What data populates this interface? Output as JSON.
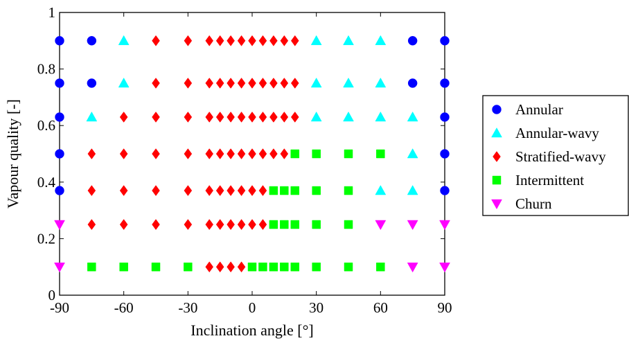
{
  "chart_data": {
    "type": "scatter",
    "title": "",
    "xlabel": "Inclination angle [°]",
    "ylabel": "Vapour quality [-]",
    "xlim": [
      -90,
      90
    ],
    "ylim": [
      0,
      1
    ],
    "xticks": [
      -90,
      -60,
      -30,
      0,
      30,
      60,
      90
    ],
    "yticks": [
      0,
      0.2,
      0.4,
      0.6,
      0.8,
      1
    ],
    "xtick_labels": [
      "-90",
      "-60",
      "-30",
      "0",
      "30",
      "60",
      "90"
    ],
    "ytick_labels": [
      "0",
      "0.2",
      "0.4",
      "0.6",
      "0.8",
      "1"
    ],
    "grid": false,
    "legend_position": "outside right",
    "series": [
      {
        "name": "Annular",
        "color": "#0000ff",
        "marker": "circle",
        "points": [
          [
            -90,
            0.9
          ],
          [
            -75,
            0.9
          ],
          [
            75,
            0.9
          ],
          [
            90,
            0.9
          ],
          [
            -90,
            0.75
          ],
          [
            -75,
            0.75
          ],
          [
            75,
            0.75
          ],
          [
            90,
            0.75
          ],
          [
            -90,
            0.63
          ],
          [
            90,
            0.63
          ],
          [
            -90,
            0.5
          ],
          [
            90,
            0.5
          ],
          [
            -90,
            0.37
          ],
          [
            90,
            0.37
          ]
        ]
      },
      {
        "name": "Annular-wavy",
        "color": "#00ffff",
        "marker": "triangle-up",
        "points": [
          [
            -60,
            0.9
          ],
          [
            30,
            0.9
          ],
          [
            45,
            0.9
          ],
          [
            60,
            0.9
          ],
          [
            -60,
            0.75
          ],
          [
            30,
            0.75
          ],
          [
            45,
            0.75
          ],
          [
            60,
            0.75
          ],
          [
            -75,
            0.63
          ],
          [
            30,
            0.63
          ],
          [
            45,
            0.63
          ],
          [
            60,
            0.63
          ],
          [
            75,
            0.63
          ],
          [
            75,
            0.5
          ],
          [
            60,
            0.37
          ],
          [
            75,
            0.37
          ]
        ]
      },
      {
        "name": "Stratified-wavy",
        "color": "#ff0000",
        "marker": "diamond",
        "points": [
          [
            -45,
            0.9
          ],
          [
            -30,
            0.9
          ],
          [
            -20,
            0.9
          ],
          [
            -15,
            0.9
          ],
          [
            -10,
            0.9
          ],
          [
            -5,
            0.9
          ],
          [
            0,
            0.9
          ],
          [
            5,
            0.9
          ],
          [
            10,
            0.9
          ],
          [
            15,
            0.9
          ],
          [
            20,
            0.9
          ],
          [
            -45,
            0.75
          ],
          [
            -30,
            0.75
          ],
          [
            -20,
            0.75
          ],
          [
            -15,
            0.75
          ],
          [
            -10,
            0.75
          ],
          [
            -5,
            0.75
          ],
          [
            0,
            0.75
          ],
          [
            5,
            0.75
          ],
          [
            10,
            0.75
          ],
          [
            15,
            0.75
          ],
          [
            20,
            0.75
          ],
          [
            -60,
            0.63
          ],
          [
            -45,
            0.63
          ],
          [
            -30,
            0.63
          ],
          [
            -20,
            0.63
          ],
          [
            -15,
            0.63
          ],
          [
            -10,
            0.63
          ],
          [
            -5,
            0.63
          ],
          [
            0,
            0.63
          ],
          [
            5,
            0.63
          ],
          [
            10,
            0.63
          ],
          [
            15,
            0.63
          ],
          [
            20,
            0.63
          ],
          [
            -75,
            0.5
          ],
          [
            -60,
            0.5
          ],
          [
            -45,
            0.5
          ],
          [
            -30,
            0.5
          ],
          [
            -20,
            0.5
          ],
          [
            -15,
            0.5
          ],
          [
            -10,
            0.5
          ],
          [
            -5,
            0.5
          ],
          [
            0,
            0.5
          ],
          [
            5,
            0.5
          ],
          [
            10,
            0.5
          ],
          [
            15,
            0.5
          ],
          [
            -75,
            0.37
          ],
          [
            -60,
            0.37
          ],
          [
            -45,
            0.37
          ],
          [
            -30,
            0.37
          ],
          [
            -20,
            0.37
          ],
          [
            -15,
            0.37
          ],
          [
            -10,
            0.37
          ],
          [
            -5,
            0.37
          ],
          [
            0,
            0.37
          ],
          [
            5,
            0.37
          ],
          [
            -75,
            0.25
          ],
          [
            -60,
            0.25
          ],
          [
            -45,
            0.25
          ],
          [
            -30,
            0.25
          ],
          [
            -20,
            0.25
          ],
          [
            -15,
            0.25
          ],
          [
            -10,
            0.25
          ],
          [
            -5,
            0.25
          ],
          [
            0,
            0.25
          ],
          [
            5,
            0.25
          ],
          [
            -20,
            0.1
          ],
          [
            -15,
            0.1
          ],
          [
            -10,
            0.1
          ],
          [
            -5,
            0.1
          ]
        ]
      },
      {
        "name": "Intermittent",
        "color": "#00ff00",
        "marker": "square",
        "points": [
          [
            20,
            0.5
          ],
          [
            30,
            0.5
          ],
          [
            45,
            0.5
          ],
          [
            60,
            0.5
          ],
          [
            10,
            0.37
          ],
          [
            15,
            0.37
          ],
          [
            20,
            0.37
          ],
          [
            30,
            0.37
          ],
          [
            45,
            0.37
          ],
          [
            10,
            0.25
          ],
          [
            15,
            0.25
          ],
          [
            20,
            0.25
          ],
          [
            30,
            0.25
          ],
          [
            45,
            0.25
          ],
          [
            -75,
            0.1
          ],
          [
            -60,
            0.1
          ],
          [
            -45,
            0.1
          ],
          [
            -30,
            0.1
          ],
          [
            0,
            0.1
          ],
          [
            5,
            0.1
          ],
          [
            10,
            0.1
          ],
          [
            15,
            0.1
          ],
          [
            20,
            0.1
          ],
          [
            30,
            0.1
          ],
          [
            45,
            0.1
          ],
          [
            60,
            0.1
          ]
        ]
      },
      {
        "name": "Churn",
        "color": "#ff00ff",
        "marker": "triangle-down",
        "points": [
          [
            -90,
            0.25
          ],
          [
            60,
            0.25
          ],
          [
            75,
            0.25
          ],
          [
            90,
            0.25
          ],
          [
            -90,
            0.1
          ],
          [
            75,
            0.1
          ],
          [
            90,
            0.1
          ]
        ]
      }
    ]
  }
}
